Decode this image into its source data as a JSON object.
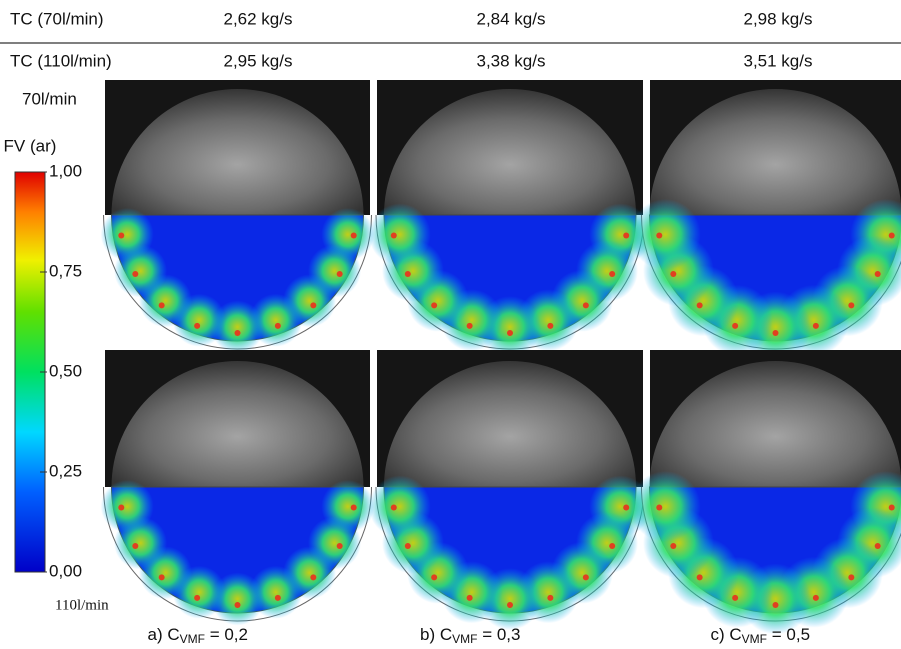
{
  "header": {
    "rows": [
      [
        "TC (70l/min)",
        "2,62 kg/s",
        "2,84 kg/s",
        "2,98 kg/s"
      ],
      [
        "TC (110l/min)",
        "2,95 kg/s",
        "3,38 kg/s",
        "3,51 kg/s"
      ]
    ]
  },
  "labels": {
    "top_flow": "70l/min",
    "bottom_flow": "110l/min"
  },
  "colorbar": {
    "title": "FV (ar)",
    "ticks": [
      "1,00",
      "0,75",
      "0,50",
      "0,25",
      "0,00"
    ]
  },
  "captions": [
    {
      "prefix": "a) C",
      "sub": "VMF",
      "suffix": " = 0,2"
    },
    {
      "prefix": "b) C",
      "sub": "VMF",
      "suffix": " = 0,3"
    },
    {
      "prefix": "c) C",
      "sub": "VMF",
      "suffix": " = 0,5"
    }
  ]
}
